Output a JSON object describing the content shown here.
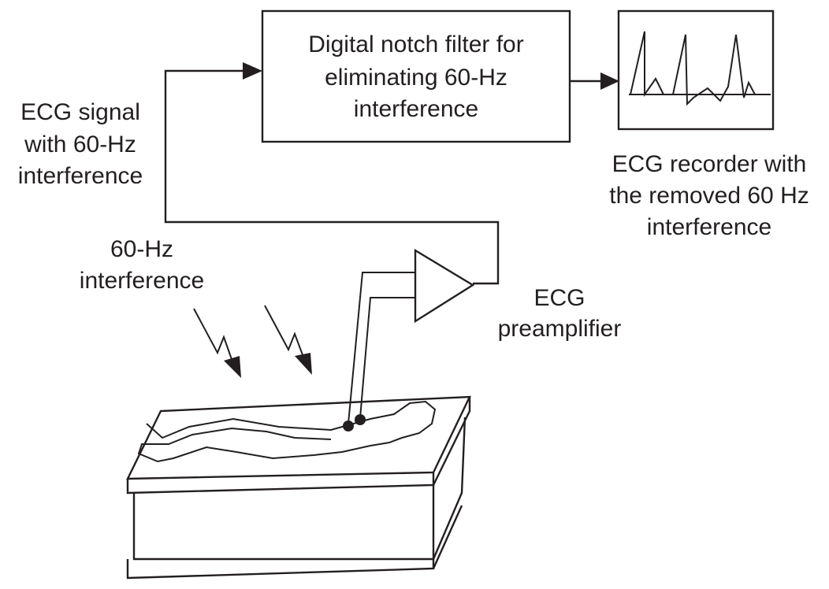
{
  "labels": {
    "filter_box": [
      "Digital notch filter for",
      "eliminating 60-Hz",
      "interference"
    ],
    "ecg_signal": [
      "ECG signal",
      "with 60-Hz",
      "interference"
    ],
    "recorder": [
      "ECG recorder with",
      "the removed 60 Hz",
      "interference"
    ],
    "interference": [
      "60-Hz",
      "interference"
    ],
    "preamplifier": [
      "ECG",
      "preamplifier"
    ]
  },
  "icons": {
    "interference": "lightning-bolt-arrow",
    "amplifier": "triangle-amplifier",
    "electrode": "filled-circle",
    "recorder_trace": "ecg-waveform"
  },
  "colors": {
    "line": "#231f20",
    "background": "#ffffff"
  }
}
